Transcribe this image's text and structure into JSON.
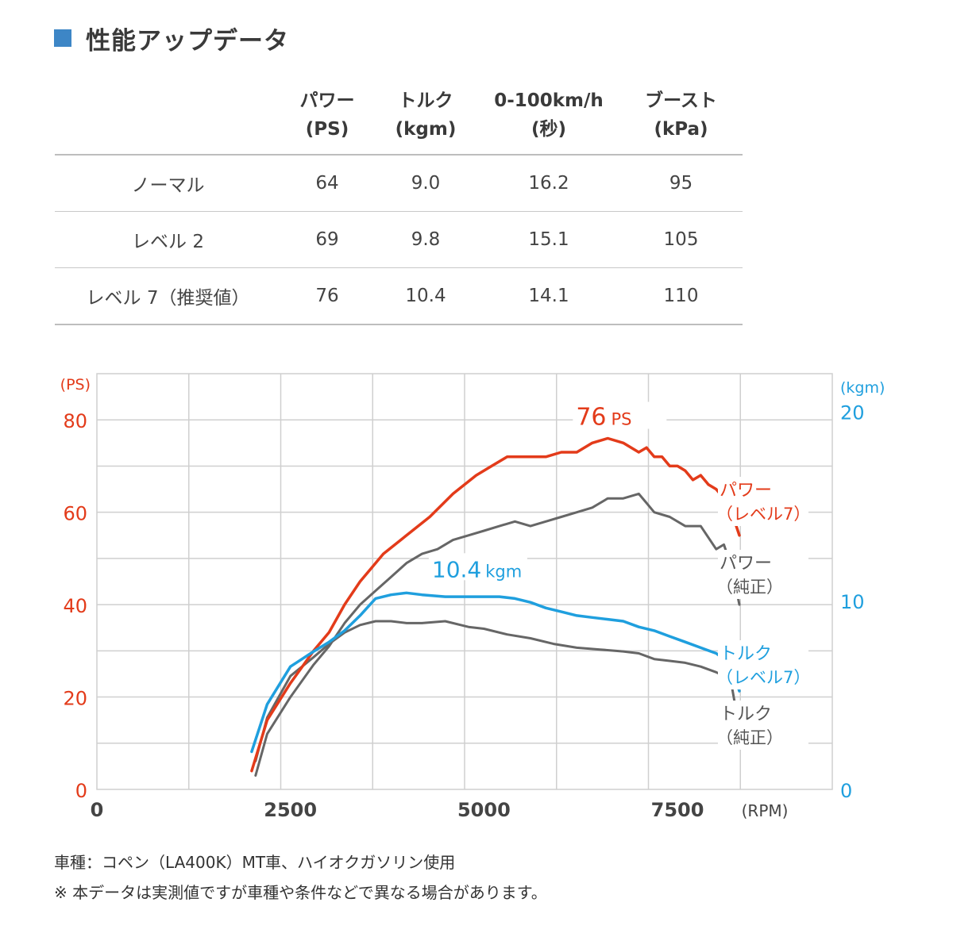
{
  "header": {
    "title": "性能アップデータ"
  },
  "table": {
    "columns": [
      {
        "name": "パワー",
        "unit": "(PS)"
      },
      {
        "name": "トルク",
        "unit": "(kgm)"
      },
      {
        "name": "0-100km/h",
        "unit": "(秒)"
      },
      {
        "name": "ブースト",
        "unit": "(kPa)"
      }
    ],
    "rows": [
      {
        "label": "ノーマル",
        "values": [
          "64",
          "9.0",
          "16.2",
          "95"
        ]
      },
      {
        "label": "レベル 2",
        "values": [
          "69",
          "9.8",
          "15.1",
          "105"
        ]
      },
      {
        "label": "レベル 7（推奨値）",
        "values": [
          "76",
          "10.4",
          "14.1",
          "110"
        ]
      }
    ]
  },
  "chart_data": {
    "type": "line",
    "xlabel": "(RPM)",
    "ylabel_left": "(PS)",
    "ylabel_right": "(kgm)",
    "xlim": [
      0,
      9500
    ],
    "ylim_left": [
      0,
      90
    ],
    "ylim_right": [
      0,
      22
    ],
    "x_ticks": [
      "0",
      "2500",
      "5000",
      "7500"
    ],
    "x_tick_values": [
      0,
      2500,
      5000,
      7500
    ],
    "y_ticks_left": [
      "0",
      "20",
      "40",
      "60",
      "80"
    ],
    "y_tick_values_left": [
      0,
      20,
      40,
      60,
      80
    ],
    "y_ticks_right": [
      "0",
      "10",
      "20"
    ],
    "y_tick_values_right": [
      0,
      10,
      20
    ],
    "annotations": [
      {
        "text": "76",
        "unit": "PS",
        "series": "power_lv7"
      },
      {
        "text": "10.4",
        "unit": "kgm",
        "series": "torque_lv7"
      }
    ],
    "series": [
      {
        "key": "power_lv7",
        "name": "パワー",
        "sub": "（レベル7）",
        "axis": "left",
        "color": "#e33b1a",
        "x": [
          2000,
          2200,
          2500,
          2800,
          3000,
          3200,
          3400,
          3500,
          3700,
          4000,
          4300,
          4600,
          4900,
          5100,
          5300,
          5500,
          5800,
          6000,
          6200,
          6400,
          6600,
          6800,
          7000,
          7100,
          7200,
          7300,
          7400,
          7500,
          7600,
          7700,
          7800,
          7900,
          8000,
          8100,
          8200,
          8300
        ],
        "values": [
          4,
          15,
          23,
          30,
          34,
          40,
          45,
          47,
          51,
          55,
          59,
          64,
          68,
          70,
          72,
          72,
          72,
          73,
          73,
          75,
          76,
          75,
          73,
          74,
          72,
          72,
          70,
          70,
          69,
          67,
          68,
          66,
          65,
          63,
          60,
          55
        ]
      },
      {
        "key": "power_std",
        "name": "パワー",
        "sub": "（純正）",
        "axis": "left",
        "color": "#666666",
        "x": [
          2050,
          2200,
          2500,
          2800,
          3000,
          3200,
          3400,
          3600,
          3800,
          4000,
          4200,
          4400,
          4600,
          4800,
          5000,
          5200,
          5400,
          5600,
          5800,
          6000,
          6200,
          6400,
          6600,
          6800,
          7000,
          7100,
          7200,
          7400,
          7600,
          7800,
          8000,
          8100,
          8200,
          8300
        ],
        "values": [
          3,
          12,
          20,
          27,
          31,
          36,
          40,
          43,
          46,
          49,
          51,
          52,
          54,
          55,
          56,
          57,
          58,
          57,
          58,
          59,
          60,
          61,
          63,
          63,
          64,
          62,
          60,
          59,
          57,
          57,
          52,
          53,
          48,
          40
        ]
      },
      {
        "key": "torque_lv7",
        "name": "トルク",
        "sub": "（レベル7）",
        "axis": "right",
        "color": "#1f9fde",
        "x": [
          2000,
          2200,
          2500,
          2800,
          3000,
          3200,
          3400,
          3600,
          3800,
          4000,
          4200,
          4500,
          4800,
          5000,
          5200,
          5400,
          5600,
          5800,
          6000,
          6200,
          6400,
          6600,
          6800,
          7000,
          7200,
          7400,
          7600,
          7800,
          8000,
          8100,
          8200,
          8300
        ],
        "values": [
          2,
          4.5,
          6.5,
          7.3,
          7.8,
          8.4,
          9.2,
          10.1,
          10.3,
          10.4,
          10.3,
          10.2,
          10.2,
          10.2,
          10.2,
          10.1,
          9.9,
          9.6,
          9.4,
          9.2,
          9.1,
          9.0,
          8.9,
          8.6,
          8.4,
          8.1,
          7.8,
          7.5,
          7.2,
          6.9,
          6.5,
          5.2
        ]
      },
      {
        "key": "torque_std",
        "name": "トルク",
        "sub": "（純正）",
        "axis": "right",
        "color": "#666666",
        "x": [
          2050,
          2200,
          2500,
          2800,
          3000,
          3200,
          3400,
          3600,
          3800,
          4000,
          4200,
          4500,
          4800,
          5000,
          5300,
          5600,
          5900,
          6200,
          6500,
          6800,
          7000,
          7200,
          7400,
          7600,
          7800,
          8000,
          8100,
          8200,
          8300
        ],
        "values": [
          1.5,
          3.8,
          6,
          7,
          7.7,
          8.3,
          8.7,
          8.9,
          8.9,
          8.8,
          8.8,
          8.9,
          8.6,
          8.5,
          8.2,
          8.0,
          7.7,
          7.5,
          7.4,
          7.3,
          7.2,
          6.9,
          6.8,
          6.7,
          6.5,
          6.2,
          6.0,
          5.5,
          3.2
        ]
      }
    ]
  },
  "notes": [
    "車種：コペン（LA400K）MT車、ハイオクガソリン使用",
    "※ 本データは実測値ですが車種や条件などで異なる場合があります。"
  ],
  "colors": {
    "accent": "#3d86c6",
    "power": "#e33b1a",
    "torque": "#1f9fde",
    "stock": "#666666",
    "grid": "#cfcfcf"
  }
}
